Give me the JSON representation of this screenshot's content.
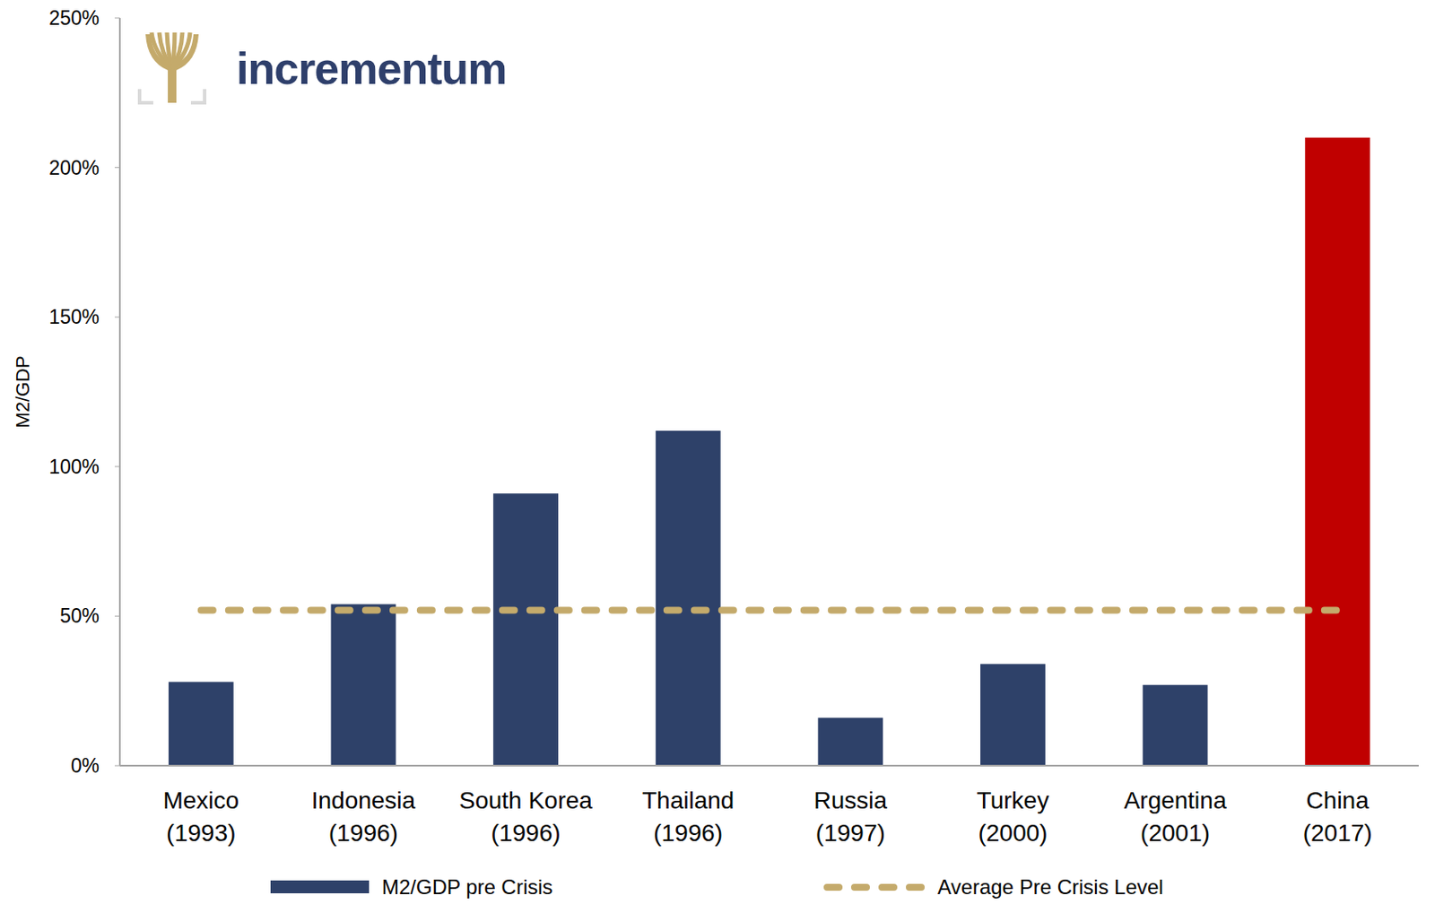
{
  "chart_data": {
    "type": "bar",
    "annotations": [
      "incrementum"
    ],
    "y_label": "M2/GDP",
    "categories": [
      "Mexico (1993)",
      "Indonesia (1996)",
      "South Korea (1996)",
      "Thailand (1996)",
      "Russia (1997)",
      "Turkey (2000)",
      "Argentina (2001)",
      "China (2017)"
    ],
    "series": [
      {
        "name": "M2/GDP pre Crisis",
        "type": "bar",
        "color": "#2e4169",
        "colors": [
          "#2e4169",
          "#2e4169",
          "#2e4169",
          "#2e4169",
          "#2e4169",
          "#2e4169",
          "#2e4169",
          "#c00000"
        ],
        "values": [
          28,
          54,
          91,
          112,
          16,
          34,
          27,
          210
        ]
      },
      {
        "name": "Average Pre Crisis Level",
        "type": "line",
        "color": "#c4aa6b",
        "line_style": "dashed",
        "values": [
          52,
          52,
          52,
          52,
          52,
          52,
          52,
          52
        ]
      }
    ],
    "ylim": [
      0,
      250
    ],
    "yticks": [
      {
        "value": 0,
        "label": "0%"
      },
      {
        "value": 50,
        "label": "50%"
      },
      {
        "value": 100,
        "label": "100%"
      },
      {
        "value": 150,
        "label": "150%"
      },
      {
        "value": 200,
        "label": "200%"
      },
      {
        "value": 250,
        "label": "250%"
      }
    ],
    "grid": false,
    "legend": "bottom"
  }
}
